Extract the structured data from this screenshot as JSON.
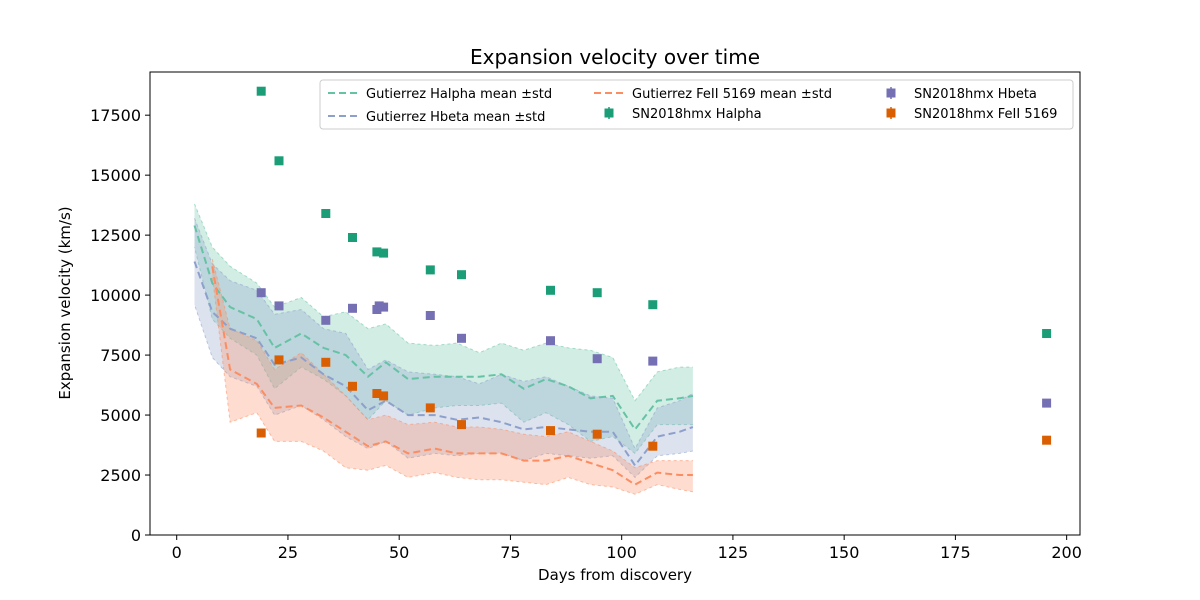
{
  "chart_data": {
    "type": "line",
    "title": "Expansion velocity over time",
    "xlabel": "Days from discovery",
    "ylabel": "Expansion velocity (km/s)",
    "xlim": [
      -6,
      203
    ],
    "ylim": [
      0,
      19300
    ],
    "xticks": [
      0,
      25,
      50,
      75,
      100,
      125,
      150,
      175,
      200
    ],
    "yticks": [
      0,
      2500,
      5000,
      7500,
      10000,
      12500,
      15000,
      17500
    ],
    "legend_position": "top-right",
    "grid": false,
    "bands": [
      {
        "name": "Gutierrez Halpha mean ±std",
        "color": "#66c2a5",
        "x": [
          4,
          8,
          12,
          18,
          22,
          28,
          33,
          38,
          43,
          47,
          52,
          58,
          63,
          68,
          73,
          78,
          83,
          88,
          93,
          98,
          103,
          108,
          113,
          116
        ],
        "mean": [
          12900,
          10500,
          9500,
          9000,
          7800,
          8400,
          7800,
          7500,
          6600,
          7200,
          6500,
          6600,
          6600,
          6600,
          6700,
          6100,
          6500,
          6200,
          5700,
          5800,
          4400,
          5600,
          5700,
          5800
        ],
        "upper": [
          13800,
          12000,
          11200,
          10500,
          9500,
          9900,
          9100,
          9300,
          8600,
          8800,
          8000,
          7900,
          8000,
          7600,
          8000,
          7700,
          8000,
          7800,
          7700,
          7400,
          5600,
          6800,
          7000,
          7000
        ],
        "lower": [
          12000,
          9000,
          8200,
          7500,
          6100,
          7000,
          6500,
          5800,
          4800,
          5600,
          5000,
          5300,
          5400,
          5400,
          5500,
          4700,
          5100,
          4600,
          3900,
          4100,
          3400,
          4600,
          4600,
          4600
        ]
      },
      {
        "name": "Gutierrez Hbeta mean ±std",
        "color": "#8da0cb",
        "x": [
          4,
          8,
          12,
          18,
          22,
          28,
          33,
          38,
          43,
          47,
          52,
          58,
          63,
          68,
          73,
          78,
          83,
          88,
          93,
          98,
          103,
          108,
          113,
          116
        ],
        "mean": [
          11400,
          9300,
          8600,
          8200,
          7100,
          7400,
          6700,
          6200,
          5200,
          5600,
          5000,
          5000,
          4800,
          4900,
          4700,
          4400,
          4500,
          4400,
          4300,
          4300,
          2900,
          4100,
          4300,
          4500
        ],
        "upper": [
          13200,
          11300,
          10600,
          10200,
          9200,
          9400,
          8600,
          8400,
          6900,
          7300,
          6800,
          6700,
          6600,
          6300,
          6700,
          6400,
          6600,
          6200,
          5800,
          5700,
          3600,
          5300,
          5600,
          5900
        ],
        "lower": [
          9600,
          7400,
          6600,
          6200,
          5000,
          5400,
          4800,
          4100,
          3600,
          3900,
          3200,
          3400,
          3300,
          3400,
          3400,
          3100,
          3400,
          3300,
          3200,
          3300,
          2400,
          3300,
          3400,
          3500
        ]
      },
      {
        "name": "Gutierrez FeII 5169 mean ±std",
        "color": "#fc8d62",
        "x": [
          8,
          12,
          18,
          22,
          28,
          33,
          38,
          43,
          47,
          52,
          58,
          63,
          68,
          73,
          78,
          83,
          88,
          93,
          98,
          103,
          108,
          113,
          116
        ],
        "mean": [
          11200,
          6900,
          6300,
          5300,
          5400,
          4900,
          4300,
          3700,
          3900,
          3400,
          3600,
          3400,
          3400,
          3400,
          3100,
          3100,
          3300,
          3000,
          2700,
          2100,
          2600,
          2500,
          2500
        ],
        "upper": [
          11500,
          8600,
          8100,
          6900,
          7600,
          6700,
          5800,
          4800,
          5000,
          4600,
          4700,
          4500,
          4500,
          4400,
          4200,
          4100,
          4300,
          3900,
          3500,
          2800,
          3100,
          3100,
          3100
        ],
        "lower": [
          10800,
          4700,
          5100,
          3900,
          3900,
          3500,
          2800,
          2700,
          2900,
          2400,
          2600,
          2400,
          2300,
          2300,
          2200,
          2100,
          2400,
          2100,
          2000,
          1700,
          2100,
          1900,
          1800
        ]
      }
    ],
    "points": [
      {
        "name": "SN2018hmx Halpha",
        "color": "#1b9e77",
        "x": [
          19,
          23,
          33.5,
          39.5,
          45,
          46.5,
          57,
          64,
          84,
          94.5,
          107,
          195.5
        ],
        "y": [
          18500,
          15600,
          13400,
          12400,
          11800,
          11750,
          11050,
          10850,
          10200,
          10100,
          9600,
          8400
        ]
      },
      {
        "name": "SN2018hmx Hbeta",
        "color": "#7570b3",
        "x": [
          19,
          23,
          33.5,
          39.5,
          45,
          45.5,
          46.5,
          57,
          64,
          84,
          94.5,
          107,
          195.5
        ],
        "y": [
          10100,
          9550,
          8950,
          9450,
          9400,
          9550,
          9500,
          9150,
          8200,
          8100,
          7350,
          7250,
          5500
        ]
      },
      {
        "name": "SN2018hmx FeII 5169",
        "color": "#d95f02",
        "x": [
          19,
          23,
          33.5,
          39.5,
          45,
          46.5,
          57,
          64,
          84,
          94.5,
          107,
          195.5
        ],
        "y": [
          4250,
          7300,
          7200,
          6200,
          5900,
          5800,
          5300,
          4600,
          4350,
          4200,
          3700,
          3950
        ]
      }
    ]
  }
}
